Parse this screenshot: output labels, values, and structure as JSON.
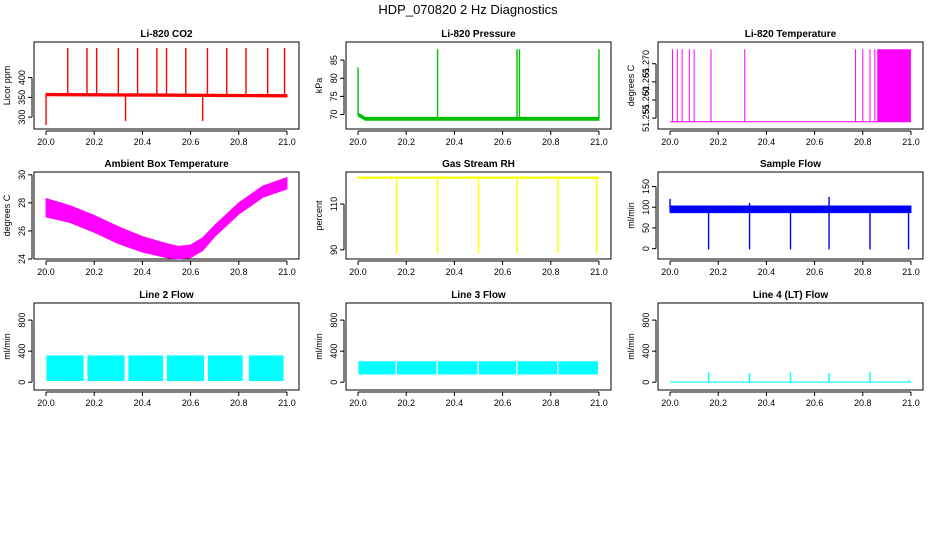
{
  "figure": {
    "title": "HDP_070820  2 Hz Diagnostics"
  },
  "chart_data": [
    {
      "type": "line",
      "title": "Li-820 CO2",
      "xlabel": "",
      "ylabel": "Licor ppm",
      "xlim": [
        19.95,
        21.05
      ],
      "ylim": [
        270,
        490
      ],
      "x_ticks": [
        "20.0",
        "20.2",
        "20.4",
        "20.6",
        "20.8",
        "21.0"
      ],
      "y_ticks": [
        "300",
        "350",
        "400"
      ],
      "color": "#ff0000",
      "style": "baseline_spikes",
      "series": [
        {
          "x": [
            20.0,
            21.0
          ],
          "values": [
            357,
            354
          ]
        }
      ],
      "band": 3,
      "spikes": [
        {
          "x": 20.0,
          "value": 280
        },
        {
          "x": 20.09,
          "value": 475
        },
        {
          "x": 20.17,
          "value": 475
        },
        {
          "x": 20.21,
          "value": 475
        },
        {
          "x": 20.3,
          "value": 475
        },
        {
          "x": 20.33,
          "value": 290
        },
        {
          "x": 20.38,
          "value": 475
        },
        {
          "x": 20.46,
          "value": 475
        },
        {
          "x": 20.5,
          "value": 475
        },
        {
          "x": 20.58,
          "value": 475
        },
        {
          "x": 20.65,
          "value": 290
        },
        {
          "x": 20.67,
          "value": 475
        },
        {
          "x": 20.75,
          "value": 475
        },
        {
          "x": 20.83,
          "value": 475
        },
        {
          "x": 20.92,
          "value": 475
        },
        {
          "x": 20.99,
          "value": 475
        }
      ]
    },
    {
      "type": "line",
      "title": "Li-820 Pressure",
      "xlabel": "",
      "ylabel": "kPa",
      "xlim": [
        19.95,
        21.05
      ],
      "ylim": [
        66,
        90
      ],
      "x_ticks": [
        "20.0",
        "20.2",
        "20.4",
        "20.6",
        "20.8",
        "21.0"
      ],
      "y_ticks": [
        "70",
        "75",
        "80",
        "85"
      ],
      "color": "#00c000",
      "style": "baseline_spikes",
      "series": [
        {
          "x": [
            20.0,
            20.03,
            21.0
          ],
          "values": [
            70,
            68.8,
            68.8
          ]
        }
      ],
      "band": 0.4,
      "spikes": [
        {
          "x": 20.0,
          "value": 83
        },
        {
          "x": 20.33,
          "value": 88
        },
        {
          "x": 20.66,
          "value": 88
        },
        {
          "x": 20.67,
          "value": 88
        },
        {
          "x": 21.0,
          "value": 88
        }
      ]
    },
    {
      "type": "line",
      "title": "Li-820 Temperature",
      "xlabel": "",
      "ylabel": "degrees C",
      "xlim": [
        19.95,
        21.05
      ],
      "ylim": [
        51.252,
        51.276
      ],
      "x_ticks": [
        "20.0",
        "20.2",
        "20.4",
        "20.6",
        "20.8",
        "21.0"
      ],
      "y_ticks": [
        "51.255",
        "51.260",
        "51.265",
        "51.270"
      ],
      "color": "#ff00ff",
      "style": "binary_toggle",
      "levels": [
        51.254,
        51.274
      ],
      "toggles": [
        20.01,
        20.03,
        20.05,
        20.08,
        20.1,
        20.17,
        20.31,
        20.77,
        20.8,
        20.83,
        20.85
      ],
      "dense_range": [
        20.86,
        21.0
      ]
    },
    {
      "type": "area",
      "title": "Ambient Box Temperature",
      "xlabel": "",
      "ylabel": "degrees C",
      "xlim": [
        19.95,
        21.05
      ],
      "ylim": [
        24,
        30.2
      ],
      "x_ticks": [
        "20.0",
        "20.2",
        "20.4",
        "20.6",
        "20.8",
        "21.0"
      ],
      "y_ticks": [
        "24",
        "26",
        "28",
        "30"
      ],
      "color": "#ff00ff",
      "style": "band",
      "series": [
        {
          "x": [
            20.0,
            20.1,
            20.2,
            20.3,
            20.4,
            20.5,
            20.55,
            20.6,
            20.65,
            20.7,
            20.8,
            20.9,
            21.0
          ],
          "upper": [
            28.3,
            27.8,
            27.1,
            26.3,
            25.6,
            25.1,
            24.9,
            25.0,
            25.5,
            26.4,
            28.0,
            29.2,
            29.8
          ],
          "lower": [
            27.0,
            26.6,
            25.9,
            25.1,
            24.5,
            24.1,
            24.0,
            24.1,
            24.6,
            25.6,
            27.2,
            28.4,
            29.0
          ]
        }
      ]
    },
    {
      "type": "line",
      "title": "Gas Stream RH",
      "xlabel": "",
      "ylabel": "percent",
      "xlim": [
        19.95,
        21.05
      ],
      "ylim": [
        86,
        124
      ],
      "x_ticks": [
        "20.0",
        "20.2",
        "20.4",
        "20.6",
        "20.8",
        "21.0"
      ],
      "y_ticks": [
        "90",
        "110"
      ],
      "color": "#ffff00",
      "style": "baseline_spikes",
      "series": [
        {
          "x": [
            20.0,
            21.0
          ],
          "values": [
            121.5,
            121.5
          ]
        }
      ],
      "band": 0.3,
      "spikes": [
        {
          "x": 20.16,
          "value": 88.5
        },
        {
          "x": 20.33,
          "value": 88.5
        },
        {
          "x": 20.5,
          "value": 88.5
        },
        {
          "x": 20.66,
          "value": 88.5
        },
        {
          "x": 20.83,
          "value": 88.5
        },
        {
          "x": 20.99,
          "value": 88.5
        }
      ]
    },
    {
      "type": "line",
      "title": "Sample Flow",
      "xlabel": "",
      "ylabel": "ml/min",
      "xlim": [
        19.95,
        21.05
      ],
      "ylim": [
        -25,
        185
      ],
      "x_ticks": [
        "20.0",
        "20.2",
        "20.4",
        "20.6",
        "20.8",
        "21.0"
      ],
      "y_ticks": [
        "0",
        "50",
        "100",
        "150"
      ],
      "color": "#0000ff",
      "style": "baseline_spikes",
      "series": [
        {
          "x": [
            20.0,
            21.0
          ],
          "values": [
            95,
            95
          ]
        }
      ],
      "band": 8,
      "spikes": [
        {
          "x": 20.0,
          "value": 120
        },
        {
          "x": 20.16,
          "value": -2
        },
        {
          "x": 20.33,
          "value": -2
        },
        {
          "x": 20.33,
          "value": 110
        },
        {
          "x": 20.5,
          "value": -2
        },
        {
          "x": 20.66,
          "value": -2
        },
        {
          "x": 20.66,
          "value": 125
        },
        {
          "x": 20.83,
          "value": -2
        },
        {
          "x": 20.99,
          "value": -2
        }
      ]
    },
    {
      "type": "area",
      "title": "Line 2 Flow",
      "xlabel": "",
      "ylabel": "ml/min",
      "xlim": [
        19.95,
        21.05
      ],
      "ylim": [
        -100,
        1020
      ],
      "x_ticks": [
        "20.0",
        "20.2",
        "20.4",
        "20.6",
        "20.8",
        "21.0"
      ],
      "y_ticks": [
        "0",
        "400",
        "800"
      ],
      "color": "#00ffff",
      "style": "segments",
      "segments": [
        {
          "x": [
            20.0,
            20.16
          ],
          "lower": 10,
          "upper": 350
        },
        {
          "x": 20.17,
          "end": 20.33,
          "lower": 10,
          "upper": 350
        }
      ]
    },
    {
      "type": "area",
      "title": "Line 3 Flow",
      "xlabel": "",
      "ylabel": "ml/min",
      "xlim": [
        19.95,
        21.05
      ],
      "ylim": [
        -100,
        1020
      ],
      "x_ticks": [
        "20.0",
        "20.2",
        "20.4",
        "20.6",
        "20.8",
        "21.0"
      ],
      "y_ticks": [
        "0",
        "400",
        "800"
      ],
      "color": "#00ffff",
      "style": "segments",
      "segments": []
    },
    {
      "type": "line",
      "title": "Line 4 (LT) Flow",
      "xlabel": "",
      "ylabel": "ml/min",
      "xlim": [
        19.95,
        21.05
      ],
      "ylim": [
        -100,
        1020
      ],
      "x_ticks": [
        "20.0",
        "20.2",
        "20.4",
        "20.6",
        "20.8",
        "21.0"
      ],
      "y_ticks": [
        "0",
        "400",
        "800"
      ],
      "color": "#00ffff",
      "style": "baseline_spikes",
      "series": [
        {
          "x": [
            20.0,
            21.0
          ],
          "values": [
            2,
            2
          ]
        }
      ],
      "band": 0,
      "spikes": [
        {
          "x": 20.16,
          "value": 130
        },
        {
          "x": 20.33,
          "value": 120
        },
        {
          "x": 20.5,
          "value": 130
        },
        {
          "x": 20.66,
          "value": 120
        },
        {
          "x": 20.83,
          "value": 130
        },
        {
          "x": 20.99,
          "value": 30
        }
      ]
    }
  ]
}
